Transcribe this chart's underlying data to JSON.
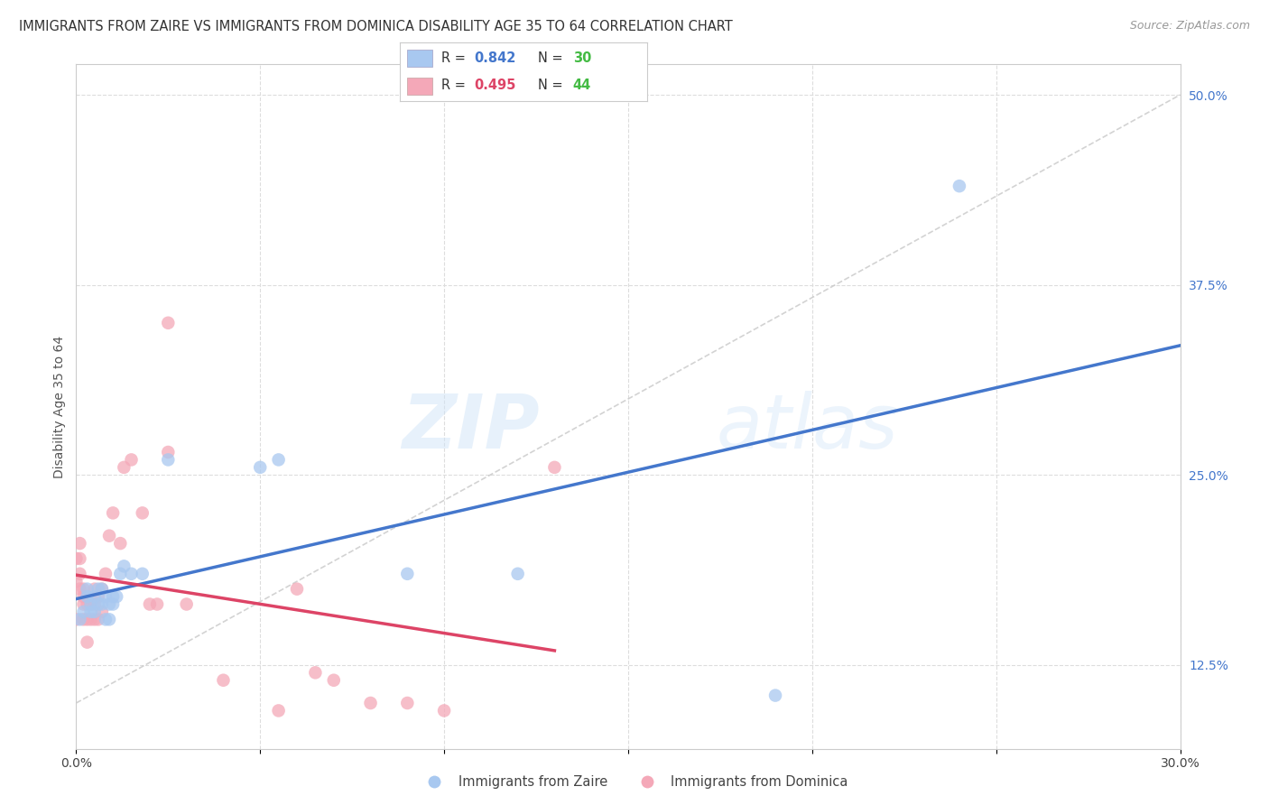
{
  "title": "IMMIGRANTS FROM ZAIRE VS IMMIGRANTS FROM DOMINICA DISABILITY AGE 35 TO 64 CORRELATION CHART",
  "source": "Source: ZipAtlas.com",
  "ylabel": "Disability Age 35 to 64",
  "xlim": [
    0.0,
    0.3
  ],
  "ylim": [
    0.07,
    0.52
  ],
  "xticks": [
    0.0,
    0.05,
    0.1,
    0.15,
    0.2,
    0.25,
    0.3
  ],
  "xticklabels": [
    "0.0%",
    "",
    "",
    "",
    "",
    "",
    "30.0%"
  ],
  "ytick_right_labels": [
    "12.5%",
    "25.0%",
    "37.5%",
    "50.0%"
  ],
  "ytick_right_values": [
    0.125,
    0.25,
    0.375,
    0.5
  ],
  "watermark_zip": "ZIP",
  "watermark_atlas": "atlas",
  "legend_zaire_R": "0.842",
  "legend_zaire_N": "30",
  "legend_dominica_R": "0.495",
  "legend_dominica_N": "44",
  "color_zaire": "#A8C8F0",
  "color_dominica": "#F4A8B8",
  "color_zaire_line": "#4477CC",
  "color_dominica_line": "#DD4466",
  "color_diagonal": "#C8C8C8",
  "background": "#FFFFFF",
  "grid_color": "#DDDDDD",
  "zaire_x": [
    0.001,
    0.002,
    0.003,
    0.003,
    0.004,
    0.004,
    0.005,
    0.005,
    0.006,
    0.006,
    0.007,
    0.007,
    0.008,
    0.008,
    0.009,
    0.009,
    0.01,
    0.01,
    0.011,
    0.012,
    0.013,
    0.015,
    0.018,
    0.025,
    0.05,
    0.055,
    0.09,
    0.12,
    0.19,
    0.24
  ],
  "zaire_y": [
    0.155,
    0.16,
    0.175,
    0.17,
    0.16,
    0.165,
    0.17,
    0.16,
    0.175,
    0.165,
    0.175,
    0.165,
    0.17,
    0.155,
    0.165,
    0.155,
    0.17,
    0.165,
    0.17,
    0.185,
    0.19,
    0.185,
    0.185,
    0.26,
    0.255,
    0.26,
    0.185,
    0.185,
    0.105,
    0.44
  ],
  "dominica_x": [
    0.0,
    0.0,
    0.0,
    0.001,
    0.001,
    0.001,
    0.001,
    0.002,
    0.002,
    0.002,
    0.002,
    0.003,
    0.003,
    0.003,
    0.004,
    0.004,
    0.005,
    0.005,
    0.005,
    0.006,
    0.006,
    0.007,
    0.007,
    0.008,
    0.009,
    0.01,
    0.012,
    0.013,
    0.015,
    0.018,
    0.02,
    0.022,
    0.025,
    0.03,
    0.04,
    0.055,
    0.06,
    0.065,
    0.07,
    0.08,
    0.09,
    0.1,
    0.13,
    0.025
  ],
  "dominica_y": [
    0.155,
    0.18,
    0.195,
    0.175,
    0.185,
    0.195,
    0.205,
    0.155,
    0.165,
    0.17,
    0.175,
    0.14,
    0.155,
    0.165,
    0.155,
    0.165,
    0.155,
    0.165,
    0.175,
    0.155,
    0.17,
    0.16,
    0.175,
    0.185,
    0.21,
    0.225,
    0.205,
    0.255,
    0.26,
    0.225,
    0.165,
    0.165,
    0.35,
    0.165,
    0.115,
    0.095,
    0.175,
    0.12,
    0.115,
    0.1,
    0.1,
    0.095,
    0.255,
    0.265
  ],
  "title_fontsize": 10.5,
  "source_fontsize": 9,
  "axis_label_fontsize": 10,
  "tick_fontsize": 10,
  "legend_fontsize": 10.5
}
